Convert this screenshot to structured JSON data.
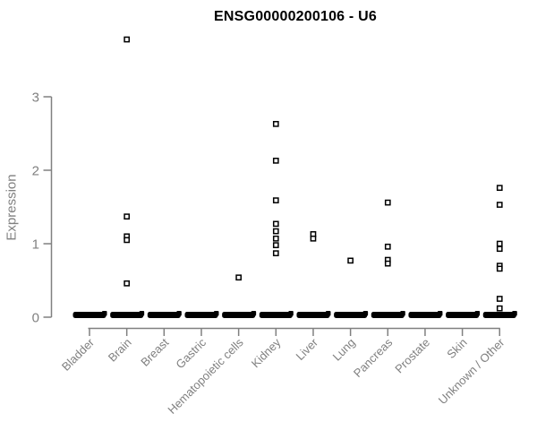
{
  "chart_data": {
    "type": "scatter",
    "variant": "stripchart",
    "title": "ENSG00000200106 - U6",
    "ylabel": "Expression",
    "xlabel": "",
    "ylim": [
      0,
      3.9
    ],
    "yticks": [
      0,
      1,
      2,
      3
    ],
    "grid": false,
    "legend": "none",
    "marker": "open-square",
    "colors": {
      "points": "#000000",
      "axis": "#808080",
      "tick_labels": "#808080",
      "title": "#000000",
      "background": "#ffffff"
    },
    "categories": [
      "Bladder",
      "Brain",
      "Breast",
      "Gastric",
      "Hematopoietic cells",
      "Kidney",
      "Liver",
      "Lung",
      "Pancreas",
      "Prostate",
      "Skin",
      "Unknown / Other"
    ],
    "series": [
      {
        "category": "Bladder",
        "values": []
      },
      {
        "category": "Brain",
        "values": [
          3.78,
          1.37,
          1.1,
          1.05,
          0.46
        ]
      },
      {
        "category": "Breast",
        "values": []
      },
      {
        "category": "Gastric",
        "values": []
      },
      {
        "category": "Hematopoietic cells",
        "values": [
          0.54
        ]
      },
      {
        "category": "Kidney",
        "values": [
          2.63,
          2.13,
          1.59,
          1.27,
          1.17,
          1.07,
          0.98,
          0.87
        ]
      },
      {
        "category": "Liver",
        "values": [
          1.13,
          1.07
        ]
      },
      {
        "category": "Lung",
        "values": [
          0.77
        ]
      },
      {
        "category": "Pancreas",
        "values": [
          1.56,
          0.96,
          0.78,
          0.73
        ]
      },
      {
        "category": "Prostate",
        "values": []
      },
      {
        "category": "Skin",
        "values": []
      },
      {
        "category": "Unknown / Other",
        "values": [
          1.76,
          1.53,
          1.0,
          0.93,
          0.7,
          0.66,
          0.25,
          0.12
        ]
      }
    ],
    "zero_cluster": {
      "present_in_all_categories": true,
      "value": 0,
      "appearance": "dense overlapping open-square points forming a thick black bar at y=0"
    }
  }
}
